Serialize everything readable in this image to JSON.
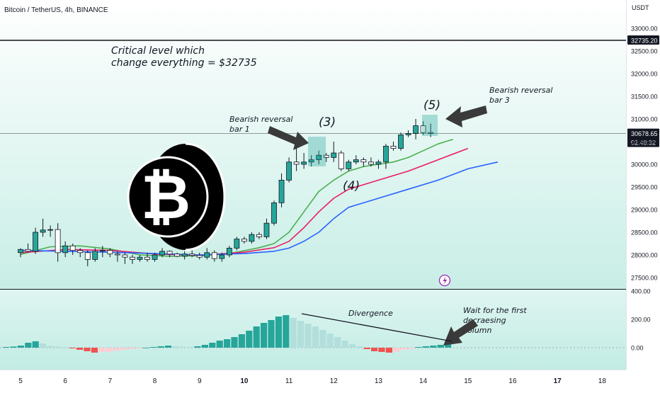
{
  "header": {
    "symbol": "Bitcoin / TetherUS, 4h, BINANCE"
  },
  "chart_data": [
    {
      "type": "candlestick",
      "quote_currency": "USDT",
      "y_ticks": [
        "33000.00",
        "32500.00",
        "32000.00",
        "31500.00",
        "31000.00",
        "30500.00",
        "30000.00",
        "29500.00",
        "29000.00",
        "28500.00",
        "28000.00",
        "27500.00"
      ],
      "ylim": [
        27300,
        33700
      ],
      "x_ticks": [
        {
          "label": "5",
          "i": 0
        },
        {
          "label": "6",
          "i": 6
        },
        {
          "label": "7",
          "i": 12
        },
        {
          "label": "8",
          "i": 18
        },
        {
          "label": "9",
          "i": 24
        },
        {
          "label": "10",
          "i": 30
        },
        {
          "label": "11",
          "i": 36
        },
        {
          "label": "12",
          "i": 42
        },
        {
          "label": "13",
          "i": 48
        },
        {
          "label": "14",
          "i": 54
        },
        {
          "label": "15",
          "i": 60
        },
        {
          "label": "16",
          "i": 66
        },
        {
          "label": "17",
          "i": 72
        },
        {
          "label": "18",
          "i": 78
        }
      ],
      "candles": [
        [
          28050,
          28150,
          27950,
          28120
        ],
        [
          28120,
          28250,
          28050,
          28080
        ],
        [
          28080,
          28600,
          28020,
          28500
        ],
        [
          28500,
          28800,
          28400,
          28550
        ],
        [
          28550,
          28650,
          28400,
          28560
        ],
        [
          28560,
          28700,
          27850,
          28050
        ],
        [
          28050,
          28300,
          27950,
          28200
        ],
        [
          28200,
          28250,
          28000,
          28100
        ],
        [
          28100,
          28150,
          27950,
          28050
        ],
        [
          28050,
          28100,
          27750,
          27900
        ],
        [
          27900,
          28150,
          27850,
          28080
        ],
        [
          28080,
          28200,
          27950,
          28100
        ],
        [
          28100,
          28150,
          27950,
          28020
        ],
        [
          28020,
          28080,
          27850,
          28000
        ],
        [
          28000,
          28050,
          27800,
          27950
        ],
        [
          27950,
          28000,
          27800,
          27900
        ],
        [
          27900,
          28000,
          27850,
          27950
        ],
        [
          27950,
          28050,
          27850,
          27900
        ],
        [
          27900,
          28050,
          27850,
          28000
        ],
        [
          28000,
          28150,
          27950,
          28080
        ],
        [
          28080,
          28100,
          27950,
          28020
        ],
        [
          28020,
          28050,
          27950,
          27970
        ],
        [
          27970,
          28080,
          27900,
          28020
        ],
        [
          28020,
          28100,
          27950,
          27990
        ],
        [
          27990,
          28050,
          27900,
          27950
        ],
        [
          27950,
          28150,
          27900,
          28050
        ],
        [
          28050,
          28100,
          27850,
          27920
        ],
        [
          27920,
          28050,
          27850,
          28000
        ],
        [
          28000,
          28200,
          27950,
          28150
        ],
        [
          28150,
          28400,
          28100,
          28350
        ],
        [
          28350,
          28400,
          28250,
          28300
        ],
        [
          28300,
          28500,
          28250,
          28450
        ],
        [
          28450,
          28500,
          28350,
          28400
        ],
        [
          28400,
          28800,
          28350,
          28700
        ],
        [
          28700,
          29200,
          28650,
          29150
        ],
        [
          29150,
          29800,
          29050,
          29650
        ],
        [
          29650,
          30150,
          29600,
          30050
        ],
        [
          30050,
          30450,
          29850,
          30000
        ],
        [
          30000,
          30250,
          29900,
          30050
        ],
        [
          30050,
          30200,
          29950,
          30100
        ],
        [
          30100,
          30300,
          30000,
          30200
        ],
        [
          30200,
          30250,
          30050,
          30150
        ],
        [
          30150,
          30500,
          30050,
          30250
        ],
        [
          30250,
          30300,
          29850,
          29900
        ],
        [
          29900,
          30100,
          29850,
          30050
        ],
        [
          30050,
          30200,
          30000,
          30100
        ],
        [
          30100,
          30150,
          29950,
          30050
        ],
        [
          30050,
          30150,
          29950,
          30000
        ],
        [
          30000,
          30100,
          29900,
          30050
        ],
        [
          30050,
          30450,
          29900,
          30400
        ],
        [
          30400,
          30500,
          30300,
          30350
        ],
        [
          30350,
          30700,
          30300,
          30650
        ],
        [
          30650,
          30750,
          30600,
          30680
        ],
        [
          30680,
          31000,
          30550,
          30850
        ],
        [
          30850,
          30950,
          30650,
          30700
        ],
        [
          30700,
          30900,
          30600,
          30680
        ]
      ],
      "moving_averages": [
        {
          "color": "#4caf50",
          "values": [
            [
              0,
              28010
            ],
            [
              4,
              28180
            ],
            [
              8,
              28200
            ],
            [
              12,
              28130
            ],
            [
              16,
              28000
            ],
            [
              20,
              27970
            ],
            [
              24,
              27980
            ],
            [
              28,
              28030
            ],
            [
              32,
              28160
            ],
            [
              34,
              28250
            ],
            [
              36,
              28500
            ],
            [
              38,
              28950
            ],
            [
              40,
              29400
            ],
            [
              42,
              29650
            ],
            [
              44,
              29850
            ],
            [
              46,
              29950
            ],
            [
              48,
              30000
            ],
            [
              50,
              30050
            ],
            [
              52,
              30150
            ],
            [
              54,
              30300
            ],
            [
              56,
              30450
            ],
            [
              58,
              30550
            ]
          ]
        },
        {
          "color": "#e91e63",
          "values": [
            [
              0,
              28050
            ],
            [
              6,
              28120
            ],
            [
              12,
              28100
            ],
            [
              18,
              28020
            ],
            [
              24,
              27990
            ],
            [
              30,
              28060
            ],
            [
              34,
              28160
            ],
            [
              36,
              28300
            ],
            [
              38,
              28600
            ],
            [
              40,
              28950
            ],
            [
              42,
              29250
            ],
            [
              44,
              29450
            ],
            [
              48,
              29650
            ],
            [
              52,
              29850
            ],
            [
              56,
              30100
            ],
            [
              60,
              30350
            ]
          ]
        },
        {
          "color": "#2962ff",
          "values": [
            [
              0,
              28100
            ],
            [
              6,
              28080
            ],
            [
              12,
              28060
            ],
            [
              18,
              28030
            ],
            [
              24,
              28000
            ],
            [
              30,
              28030
            ],
            [
              34,
              28080
            ],
            [
              36,
              28150
            ],
            [
              38,
              28300
            ],
            [
              40,
              28500
            ],
            [
              42,
              28800
            ],
            [
              44,
              29050
            ],
            [
              48,
              29250
            ],
            [
              52,
              29450
            ],
            [
              56,
              29650
            ],
            [
              60,
              29900
            ],
            [
              64,
              30050
            ]
          ]
        }
      ],
      "price_lines": [
        {
          "label": "32735.20",
          "value": 32735.2,
          "color": "#000000"
        },
        {
          "label": "30678.65",
          "value": 30678.65,
          "color": "#000000",
          "countdown": "02:48:32"
        }
      ]
    },
    {
      "type": "bar",
      "name": "oscillator",
      "y_ticks": [
        "400.00",
        "200.00",
        "0.00"
      ],
      "ylim": [
        -150,
        400
      ],
      "values": [
        5,
        8,
        15,
        35,
        45,
        30,
        12,
        8,
        0,
        -5,
        -15,
        -25,
        -35,
        -30,
        -28,
        -22,
        -15,
        -10,
        -5,
        0,
        5,
        10,
        15,
        10,
        8,
        5,
        10,
        20,
        35,
        50,
        60,
        75,
        95,
        120,
        150,
        175,
        195,
        220,
        230,
        210,
        190,
        170,
        150,
        125,
        100,
        75,
        50,
        25,
        10,
        -10,
        -25,
        -30,
        -35,
        -28,
        -15,
        -8,
        5,
        10,
        15,
        20,
        25
      ]
    }
  ],
  "annotations": {
    "critical_level": [
      "Critical level which",
      "change everything = $32735"
    ],
    "bearish_bar1": [
      "Bearish reversal",
      "bar 1"
    ],
    "bearish_bar3": [
      "Bearish reversal",
      "bar 3"
    ],
    "wave3": "(3)",
    "wave4": "(4)",
    "wave5": "(5)",
    "divergence": "Divergence",
    "wait_column": [
      "Wait for the first",
      "decraesing",
      "column"
    ]
  },
  "colors": {
    "up": "#26a69a",
    "down": "#ef5350",
    "bg": "#ffffff",
    "highlight": "#26a69a",
    "alert_icon": "#9c27b0"
  },
  "icons": [
    "bitcoin-logo-icon",
    "arrow-icon",
    "lightning-icon"
  ]
}
